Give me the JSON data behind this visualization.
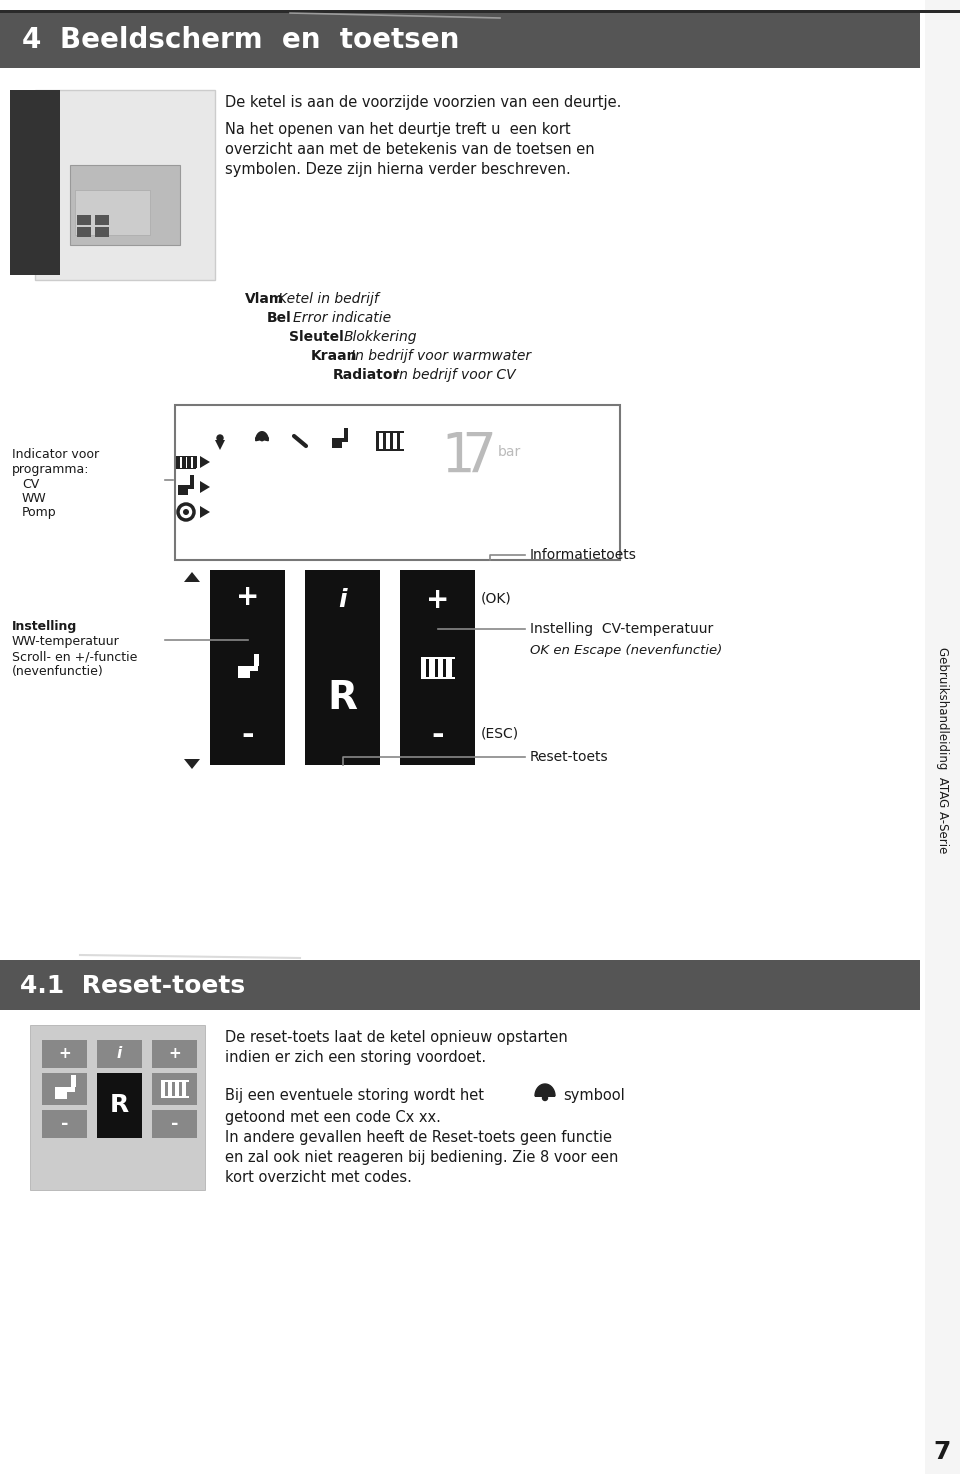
{
  "page_bg": "#ffffff",
  "header_bg": "#555555",
  "header_text_num": "4",
  "header_text_title": "Beeldscherm  en  toetsen",
  "header_text_color": "#ffffff",
  "header_fontsize": 20,
  "para1": "De ketel is aan de voorzijde voorzien van een deurtje.",
  "para2_line1": "Na het openen van het deurtje treft u  een kort",
  "para2_line2": "overzicht aan met de betekenis van de toetsen en",
  "para2_line3": "symbolen. Deze zijn hierna verder beschreven.",
  "labels_bold": [
    "Vlam",
    "Bel",
    "Sleutel",
    "Kraan",
    "Radiator"
  ],
  "labels_desc": [
    "Ketel in bedrijf",
    "Error indicatie",
    "Blokkering",
    "In bedrijf voor warmwater",
    "In bedrijf voor CV"
  ],
  "label_indicator": "Indicator voor\nprogramma:\nCV\nWW\nPomp",
  "label_informatietoets": "Informatietoets",
  "label_instelling_bold": "Instelling",
  "label_instelling_rest": "WW-temperatuur\nScroll- en +/-functie\n(nevenfunctie)",
  "label_cv_temp": "Instelling  CV-temperatuur",
  "label_ok_escape": "OK en Escape (nevenfunctie)",
  "label_reset": "Reset-toets",
  "section2_bg": "#555555",
  "section2_text": "4.1  Reset-toets",
  "section2_text_color": "#ffffff",
  "section2_fontsize": 18,
  "reset_para1_line1": "De reset-toets laat de ketel opnieuw opstarten",
  "reset_para1_line2": "indien er zich een storing voordoet.",
  "reset_para2": "Bij een eventuele storing wordt het",
  "reset_para2b": "symbool",
  "reset_para3": "getoond met een code Cx xx.",
  "reset_para4_line1": "In andere gevallen heeft de Reset-toets geen functie",
  "reset_para4_line2": "en zal ook niet reageren bij bediening. Zie 8 voor een",
  "reset_para4_line3": "kort overzicht met codes.",
  "sidebar_text": "Gebruikshandleiding  ATAG A-Serie",
  "page_number": "7",
  "font_color": "#1a1a1a",
  "gray_color": "#aaaaaa",
  "dark_gray": "#444444",
  "line_color": "#888888"
}
